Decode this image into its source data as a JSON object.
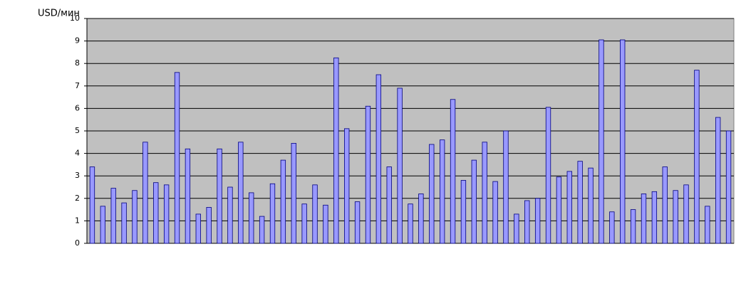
{
  "chart_data": {
    "type": "bar",
    "title": "USD/мин",
    "categories": [
      null,
      null,
      null,
      null,
      null,
      null,
      null,
      null,
      null,
      null,
      null,
      null,
      null,
      null,
      null,
      null,
      null,
      null,
      null,
      null,
      null,
      null,
      null,
      null,
      null,
      null,
      null,
      null,
      null,
      null,
      null,
      null,
      null,
      null,
      null,
      null,
      null,
      null,
      null,
      null,
      null,
      null,
      null,
      null,
      null,
      null,
      null,
      null,
      null,
      null,
      null,
      null,
      null,
      null,
      null,
      null,
      null,
      null,
      null,
      null,
      null
    ],
    "values": [
      3.4,
      1.65,
      2.45,
      1.8,
      2.35,
      4.5,
      2.7,
      2.6,
      7.6,
      4.2,
      1.3,
      1.6,
      4.2,
      2.5,
      4.5,
      2.25,
      1.2,
      2.65,
      3.7,
      4.45,
      1.75,
      2.6,
      1.7,
      8.25,
      5.1,
      1.85,
      6.1,
      7.5,
      3.4,
      6.9,
      1.75,
      2.2,
      4.4,
      4.6,
      6.4,
      2.8,
      3.7,
      4.5,
      2.75,
      5.0,
      1.3,
      1.9,
      2.0,
      6.05,
      2.95,
      3.2,
      3.65,
      3.35,
      9.05,
      1.4,
      9.05,
      1.5,
      2.2,
      2.3,
      3.4,
      2.35,
      2.6,
      7.7,
      1.65,
      5.6,
      5.0
    ],
    "color": "#9999ff",
    "ylim": [
      0,
      10
    ],
    "yticks": [
      0,
      1,
      2,
      3,
      4,
      5,
      6,
      7,
      8,
      9,
      10
    ],
    "grid": true
  }
}
